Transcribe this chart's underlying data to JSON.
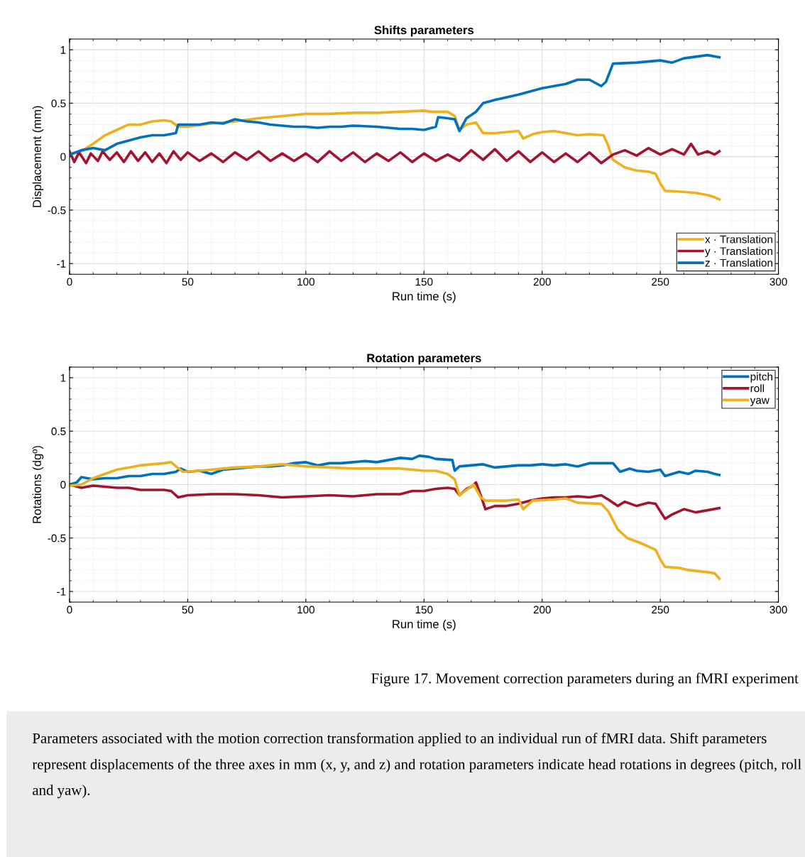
{
  "chart_data": [
    {
      "type": "line",
      "title": "Shifts parameters",
      "xlabel": "Run time (s)",
      "ylabel": "Displacement (mm)",
      "xlim": [
        0,
        300
      ],
      "xticks": [
        0,
        50,
        100,
        150,
        200,
        250,
        300
      ],
      "ylim": [
        -1.1,
        1.1
      ],
      "yticks": [
        -1,
        -0.5,
        0,
        0.5,
        1
      ],
      "grid": true,
      "legend": "bottom right",
      "line_style": "solid",
      "marker": "none",
      "series": [
        {
          "name": "x · Translation",
          "color": "#edb120",
          "x": [
            0,
            5,
            10,
            15,
            20,
            25,
            30,
            35,
            40,
            43,
            46,
            50,
            60,
            70,
            80,
            90,
            100,
            110,
            120,
            130,
            140,
            150,
            153,
            160,
            163,
            165,
            168,
            172,
            175,
            180,
            185,
            190,
            192,
            196,
            200,
            205,
            210,
            215,
            220,
            226,
            228,
            230,
            235,
            240,
            245,
            248,
            250,
            252,
            260,
            265,
            270,
            273,
            275
          ],
          "values": [
            0.02,
            0.05,
            0.12,
            0.2,
            0.25,
            0.3,
            0.3,
            0.33,
            0.34,
            0.33,
            0.28,
            0.28,
            0.31,
            0.33,
            0.36,
            0.38,
            0.4,
            0.4,
            0.41,
            0.41,
            0.42,
            0.43,
            0.42,
            0.42,
            0.38,
            0.25,
            0.3,
            0.32,
            0.22,
            0.22,
            0.23,
            0.24,
            0.17,
            0.21,
            0.23,
            0.24,
            0.22,
            0.2,
            0.21,
            0.2,
            0.1,
            -0.03,
            -0.1,
            -0.13,
            -0.14,
            -0.16,
            -0.25,
            -0.32,
            -0.33,
            -0.34,
            -0.36,
            -0.38,
            -0.4
          ]
        },
        {
          "name": "y · Translation",
          "color": "#a2142f",
          "x": [
            0,
            2,
            4,
            7,
            9,
            12,
            14,
            17,
            20,
            23,
            26,
            29,
            32,
            35,
            38,
            41,
            44,
            47,
            50,
            55,
            60,
            65,
            70,
            75,
            80,
            85,
            90,
            95,
            100,
            105,
            110,
            115,
            120,
            125,
            130,
            135,
            140,
            145,
            150,
            155,
            160,
            165,
            170,
            175,
            180,
            185,
            190,
            195,
            200,
            205,
            210,
            215,
            220,
            225,
            230,
            235,
            240,
            245,
            250,
            255,
            260,
            263,
            266,
            270,
            273,
            275
          ],
          "values": [
            0.05,
            -0.05,
            0.04,
            -0.06,
            0.03,
            -0.04,
            0.05,
            -0.03,
            0.04,
            -0.05,
            0.05,
            -0.04,
            0.04,
            -0.05,
            0.03,
            -0.06,
            0.05,
            -0.03,
            0.04,
            -0.04,
            0.03,
            -0.05,
            0.04,
            -0.03,
            0.05,
            -0.04,
            0.03,
            -0.04,
            0.03,
            -0.05,
            0.05,
            -0.04,
            0.04,
            -0.05,
            0.03,
            -0.04,
            0.04,
            -0.05,
            0.03,
            -0.04,
            0.02,
            -0.04,
            0.06,
            -0.03,
            0.07,
            -0.04,
            0.05,
            -0.05,
            0.04,
            -0.05,
            0.03,
            -0.05,
            0.04,
            -0.06,
            0.02,
            0.06,
            0.01,
            0.08,
            0.02,
            0.07,
            0.02,
            0.12,
            0.02,
            0.05,
            0.02,
            0.05
          ]
        },
        {
          "name": "z · Translation",
          "color": "#0072bd",
          "x": [
            0,
            5,
            10,
            15,
            20,
            25,
            30,
            35,
            40,
            45,
            46,
            50,
            55,
            60,
            65,
            70,
            75,
            80,
            85,
            90,
            95,
            100,
            105,
            110,
            115,
            120,
            130,
            140,
            145,
            150,
            155,
            156,
            160,
            163,
            165,
            168,
            172,
            175,
            180,
            190,
            200,
            210,
            215,
            220,
            225,
            227,
            230,
            240,
            250,
            255,
            260,
            270,
            275
          ],
          "values": [
            0.02,
            0.06,
            0.08,
            0.06,
            0.12,
            0.15,
            0.18,
            0.2,
            0.2,
            0.22,
            0.3,
            0.3,
            0.3,
            0.32,
            0.31,
            0.35,
            0.33,
            0.32,
            0.3,
            0.29,
            0.28,
            0.28,
            0.27,
            0.28,
            0.28,
            0.29,
            0.28,
            0.26,
            0.26,
            0.25,
            0.28,
            0.37,
            0.36,
            0.35,
            0.24,
            0.36,
            0.42,
            0.5,
            0.53,
            0.58,
            0.64,
            0.68,
            0.72,
            0.72,
            0.66,
            0.7,
            0.87,
            0.88,
            0.9,
            0.88,
            0.92,
            0.95,
            0.93
          ]
        }
      ]
    },
    {
      "type": "line",
      "title": "Rotation parameters",
      "xlabel": "Run time (s)",
      "ylabel": "Rotations (dgº)",
      "xlim": [
        0,
        300
      ],
      "xticks": [
        0,
        50,
        100,
        150,
        200,
        250,
        300
      ],
      "ylim": [
        -1.1,
        1.1
      ],
      "yticks": [
        -1,
        -0.5,
        0,
        0.5,
        1
      ],
      "grid": true,
      "legend": "top right",
      "line_style": "solid",
      "marker": "none",
      "annotations": [
        "Figure 17. Movement correction parameters during an fMRI experiment",
        "Parameters associated with the motion correction transformation applied to an individual run of fMRI data. Shift parameters represent displacements of the three axes in mm (x, y, and z) and rotation parameters indicate head rotations in degrees (pitch, roll and yaw)."
      ],
      "series": [
        {
          "name": "pitch",
          "color": "#0072bd",
          "x": [
            0,
            3,
            5,
            10,
            15,
            20,
            25,
            30,
            35,
            40,
            45,
            47,
            50,
            55,
            60,
            65,
            70,
            75,
            80,
            85,
            90,
            95,
            100,
            105,
            110,
            115,
            120,
            125,
            130,
            135,
            140,
            145,
            148,
            152,
            155,
            162,
            163,
            165,
            170,
            175,
            180,
            185,
            190,
            195,
            200,
            205,
            210,
            215,
            220,
            225,
            230,
            233,
            237,
            240,
            245,
            250,
            252,
            255,
            258,
            262,
            265,
            270,
            273,
            275
          ],
          "values": [
            0,
            0.02,
            0.07,
            0.05,
            0.06,
            0.06,
            0.08,
            0.08,
            0.1,
            0.1,
            0.12,
            0.15,
            0.12,
            0.13,
            0.1,
            0.14,
            0.15,
            0.16,
            0.17,
            0.17,
            0.18,
            0.2,
            0.21,
            0.18,
            0.2,
            0.2,
            0.21,
            0.22,
            0.21,
            0.23,
            0.25,
            0.24,
            0.27,
            0.26,
            0.24,
            0.23,
            0.13,
            0.17,
            0.18,
            0.19,
            0.16,
            0.17,
            0.18,
            0.18,
            0.19,
            0.18,
            0.19,
            0.17,
            0.2,
            0.2,
            0.2,
            0.12,
            0.15,
            0.13,
            0.12,
            0.14,
            0.08,
            0.1,
            0.12,
            0.1,
            0.13,
            0.12,
            0.1,
            0.09
          ]
        },
        {
          "name": "roll",
          "color": "#a2142f",
          "x": [
            0,
            5,
            10,
            15,
            20,
            25,
            30,
            35,
            40,
            43,
            46,
            50,
            60,
            70,
            80,
            90,
            100,
            110,
            120,
            125,
            130,
            140,
            145,
            150,
            155,
            160,
            163,
            165,
            168,
            170,
            172,
            174,
            176,
            180,
            185,
            190,
            195,
            200,
            205,
            210,
            215,
            220,
            225,
            228,
            232,
            235,
            240,
            245,
            248,
            252,
            255,
            260,
            265,
            270,
            275
          ],
          "values": [
            0,
            -0.03,
            -0.01,
            -0.02,
            -0.03,
            -0.03,
            -0.05,
            -0.05,
            -0.05,
            -0.06,
            -0.12,
            -0.1,
            -0.09,
            -0.09,
            -0.1,
            -0.12,
            -0.11,
            -0.1,
            -0.11,
            -0.1,
            -0.09,
            -0.09,
            -0.06,
            -0.06,
            -0.04,
            -0.03,
            -0.04,
            -0.1,
            -0.04,
            -0.02,
            0.02,
            -0.1,
            -0.23,
            -0.2,
            -0.2,
            -0.18,
            -0.15,
            -0.13,
            -0.12,
            -0.12,
            -0.11,
            -0.12,
            -0.1,
            -0.14,
            -0.2,
            -0.16,
            -0.2,
            -0.17,
            -0.18,
            -0.32,
            -0.28,
            -0.23,
            -0.26,
            -0.24,
            -0.22
          ]
        },
        {
          "name": "yaw",
          "color": "#edb120",
          "x": [
            0,
            5,
            10,
            15,
            20,
            25,
            30,
            35,
            40,
            43,
            45,
            48,
            55,
            60,
            70,
            80,
            90,
            100,
            110,
            120,
            130,
            140,
            150,
            155,
            160,
            163,
            165,
            168,
            171,
            174,
            176,
            185,
            190,
            192,
            196,
            205,
            210,
            215,
            225,
            228,
            232,
            236,
            242,
            248,
            250,
            252,
            258,
            262,
            270,
            273,
            275
          ],
          "values": [
            -0.01,
            0,
            0.06,
            0.1,
            0.14,
            0.16,
            0.18,
            0.19,
            0.2,
            0.21,
            0.17,
            0.12,
            0.13,
            0.14,
            0.16,
            0.17,
            0.19,
            0.17,
            0.16,
            0.15,
            0.15,
            0.15,
            0.13,
            0.13,
            0.1,
            0.05,
            -0.1,
            -0.05,
            0,
            -0.12,
            -0.15,
            -0.15,
            -0.14,
            -0.23,
            -0.15,
            -0.14,
            -0.13,
            -0.17,
            -0.18,
            -0.25,
            -0.42,
            -0.5,
            -0.55,
            -0.61,
            -0.7,
            -0.77,
            -0.78,
            -0.8,
            -0.82,
            -0.83,
            -0.88
          ]
        }
      ]
    }
  ]
}
